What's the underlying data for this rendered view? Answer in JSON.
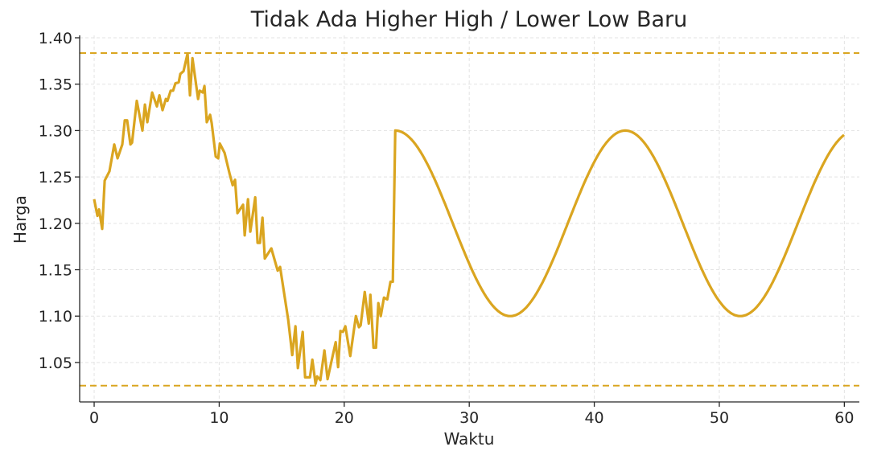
{
  "chart_data": {
    "type": "line",
    "title": "Tidak Ada Higher High / Lower Low Baru",
    "xlabel": "Waktu",
    "ylabel": "Harga",
    "xlim": [
      -1.16,
      61.2
    ],
    "ylim": [
      1.0075,
      1.4
    ],
    "xticks": [
      0,
      10,
      20,
      30,
      40,
      50,
      60
    ],
    "yticks": [
      1.05,
      1.1,
      1.15,
      1.2,
      1.25,
      1.3,
      1.35,
      1.4
    ],
    "ytick_labels": [
      "1.05",
      "1.10",
      "1.15",
      "1.20",
      "1.25",
      "1.30",
      "1.35",
      "1.40"
    ],
    "grid": true,
    "line_color": "#DAA520",
    "series": [
      {
        "segment": "noisy",
        "x": [
          0,
          0.26,
          0.39,
          0.64,
          0.84,
          1.22,
          1.61,
          1.87,
          2.25,
          2.45,
          2.64,
          2.9,
          3.03,
          3.41,
          3.86,
          4.06,
          4.25,
          4.64,
          5.02,
          5.22,
          5.47,
          5.73,
          5.86,
          6.12,
          6.31,
          6.5,
          6.76,
          6.89,
          7.15,
          7.47,
          7.66,
          7.86,
          8.31,
          8.44,
          8.69,
          8.82,
          9.01,
          9.27,
          9.4,
          9.72,
          9.92,
          10.05,
          10.43,
          10.82,
          11.08,
          11.27,
          11.46,
          11.91,
          12.04,
          12.3,
          12.49,
          12.88,
          13.07,
          13.26,
          13.46,
          13.65,
          14.17,
          14.68,
          14.87,
          15.52,
          15.84,
          16.1,
          16.29,
          16.68,
          16.87,
          17.26,
          17.45,
          17.71,
          17.84,
          18.09,
          18.42,
          18.67,
          19.32,
          19.51,
          19.7,
          19.9,
          20.09,
          20.48,
          20.93,
          21.18,
          21.31,
          21.64,
          21.96,
          22.09,
          22.34,
          22.54,
          22.73,
          22.92,
          23.18,
          23.44,
          23.7,
          23.89,
          24.08
        ],
        "y": [
          1.226,
          1.208,
          1.215,
          1.194,
          1.246,
          1.256,
          1.285,
          1.27,
          1.285,
          1.311,
          1.311,
          1.285,
          1.287,
          1.332,
          1.3,
          1.328,
          1.309,
          1.341,
          1.326,
          1.338,
          1.322,
          1.334,
          1.332,
          1.343,
          1.343,
          1.351,
          1.352,
          1.361,
          1.364,
          1.383,
          1.338,
          1.378,
          1.334,
          1.343,
          1.341,
          1.348,
          1.309,
          1.317,
          1.308,
          1.272,
          1.27,
          1.286,
          1.276,
          1.254,
          1.241,
          1.247,
          1.211,
          1.22,
          1.187,
          1.226,
          1.191,
          1.228,
          1.179,
          1.179,
          1.206,
          1.162,
          1.173,
          1.149,
          1.153,
          1.096,
          1.058,
          1.089,
          1.044,
          1.083,
          1.034,
          1.034,
          1.053,
          1.027,
          1.035,
          1.031,
          1.063,
          1.032,
          1.072,
          1.045,
          1.084,
          1.083,
          1.089,
          1.057,
          1.1,
          1.088,
          1.09,
          1.126,
          1.092,
          1.123,
          1.066,
          1.066,
          1.114,
          1.1,
          1.12,
          1.118,
          1.137,
          1.137,
          1.299
        ]
      },
      {
        "segment": "sinusoid",
        "x_range": [
          24.08,
          60
        ],
        "center": 1.2,
        "amplitude": 0.1,
        "period": 18.4,
        "peak_x": 24.08
      }
    ],
    "hlines": [
      {
        "y": 1.3835,
        "style": "dashed",
        "color": "#DAA520"
      },
      {
        "y": 1.025,
        "style": "dashed",
        "color": "#DAA520"
      }
    ]
  }
}
